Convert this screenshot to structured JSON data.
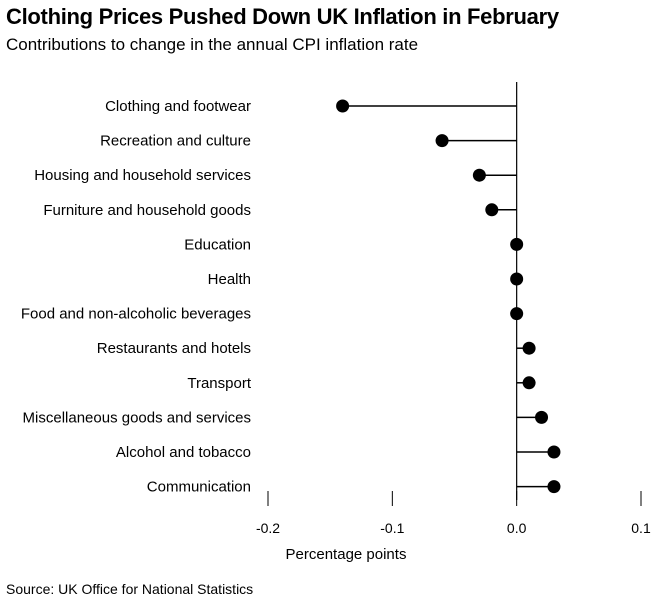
{
  "title": "Clothing Prices Pushed Down UK Inflation in February",
  "subtitle": "Contributions to change in the annual CPI inflation rate",
  "source": "Source: UK Office for National Statistics",
  "chart_data": {
    "type": "lollipop",
    "title": "Clothing Prices Pushed Down UK Inflation in February",
    "subtitle": "Contributions to change in the annual CPI inflation rate",
    "xlabel": "Percentage points",
    "ylabel": "",
    "xlim": [
      -0.2,
      0.1
    ],
    "xticks": [
      -0.2,
      -0.1,
      0.0,
      0.1
    ],
    "xtick_labels": [
      "-0.2",
      "-0.1",
      "0.0",
      "0.1"
    ],
    "grid": false,
    "color": "#000000",
    "categories": [
      "Clothing and footwear",
      "Recreation and culture",
      "Housing and household services",
      "Furniture and household goods",
      "Education",
      "Health",
      "Food and non-alcoholic beverages",
      "Restaurants and hotels",
      "Transport",
      "Miscellaneous goods and services",
      "Alcohol and tobacco",
      "Communication"
    ],
    "values": [
      -0.14,
      -0.06,
      -0.03,
      -0.02,
      0.0,
      0.0,
      0.0,
      0.01,
      0.01,
      0.02,
      0.03,
      0.03
    ]
  }
}
